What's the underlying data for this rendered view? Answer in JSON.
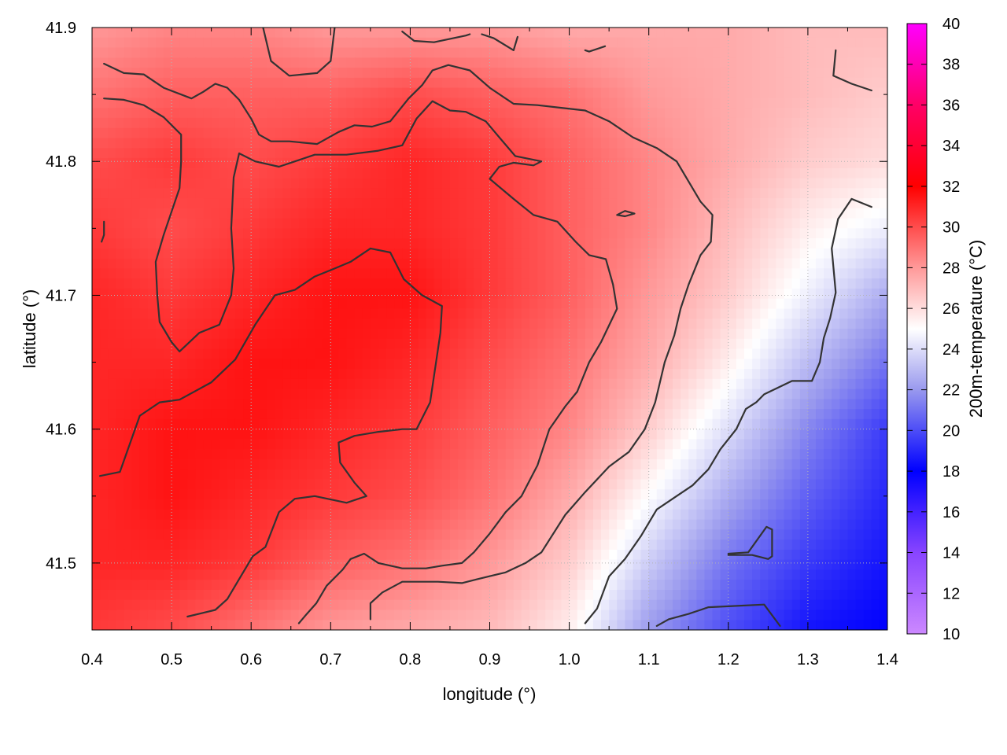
{
  "chart_data": {
    "type": "heatmap",
    "title": "",
    "xlabel": "longitude (°)",
    "ylabel": "latitude (°)",
    "colorbar_label": "200m-temperature (°C)",
    "xlim": [
      0.4,
      1.4
    ],
    "ylim": [
      41.45,
      41.9
    ],
    "x_ticks": [
      "0.4",
      "0.5",
      "0.6",
      "0.7",
      "0.8",
      "0.9",
      "1.0",
      "1.1",
      "1.2",
      "1.3",
      "1.4"
    ],
    "y_ticks": [
      "41.5",
      "41.6",
      "41.7",
      "41.8",
      "41.9"
    ],
    "colorbar_range": [
      10,
      40
    ],
    "colorbar_ticks": [
      "10",
      "12",
      "14",
      "16",
      "18",
      "20",
      "22",
      "24",
      "26",
      "28",
      "30",
      "32",
      "34",
      "36",
      "38",
      "40"
    ],
    "colorscale": [
      {
        "value": 10,
        "color": "#cc88ff"
      },
      {
        "value": 14,
        "color": "#8844ff"
      },
      {
        "value": 18,
        "color": "#0000ff"
      },
      {
        "value": 22,
        "color": "#9999ee"
      },
      {
        "value": 25,
        "color": "#ffffff"
      },
      {
        "value": 28,
        "color": "#ff9999"
      },
      {
        "value": 32,
        "color": "#ff0000"
      },
      {
        "value": 36,
        "color": "#ff0066"
      },
      {
        "value": 40,
        "color": "#ff00ff"
      }
    ],
    "grid": true,
    "field_x": [
      0.4,
      0.5,
      0.6,
      0.7,
      0.8,
      0.9,
      1.0,
      1.1,
      1.2,
      1.3,
      1.4
    ],
    "field_y": [
      41.9,
      41.85,
      41.8,
      41.75,
      41.7,
      41.65,
      41.6,
      41.55,
      41.5,
      41.45
    ],
    "field_values": [
      [
        28.0,
        28.5,
        28.5,
        28.0,
        28.0,
        28.0,
        27.5,
        27.5,
        27.5,
        27.0,
        27.0
      ],
      [
        29.0,
        29.5,
        29.5,
        29.5,
        30.0,
        29.5,
        29.0,
        28.0,
        27.5,
        27.0,
        26.5
      ],
      [
        30.0,
        30.5,
        30.0,
        30.5,
        31.0,
        30.5,
        29.5,
        28.5,
        27.5,
        26.5,
        26.0
      ],
      [
        30.5,
        30.0,
        30.5,
        31.0,
        31.0,
        30.5,
        29.5,
        28.5,
        27.0,
        25.5,
        24.5
      ],
      [
        31.0,
        30.5,
        31.0,
        31.5,
        31.5,
        30.5,
        29.5,
        28.0,
        26.5,
        24.5,
        22.5
      ],
      [
        31.0,
        31.0,
        31.5,
        31.5,
        31.0,
        30.0,
        29.0,
        27.5,
        25.5,
        23.0,
        21.0
      ],
      [
        31.0,
        31.5,
        31.5,
        31.0,
        30.5,
        29.5,
        28.5,
        26.5,
        24.0,
        21.5,
        19.5
      ],
      [
        31.0,
        31.5,
        31.0,
        30.5,
        30.0,
        29.0,
        27.5,
        25.0,
        22.5,
        20.5,
        19.0
      ],
      [
        31.0,
        31.0,
        30.5,
        29.5,
        29.0,
        28.0,
        26.5,
        23.5,
        21.0,
        19.5,
        18.5
      ],
      [
        30.5,
        30.0,
        29.0,
        28.0,
        27.5,
        27.0,
        25.5,
        22.0,
        20.0,
        18.5,
        18.0
      ]
    ],
    "contours": [
      [
        [
          0.41,
          41.565
        ],
        [
          0.435,
          41.568
        ],
        [
          0.46,
          41.61
        ],
        [
          0.485,
          41.62
        ],
        [
          0.51,
          41.622
        ],
        [
          0.55,
          41.635
        ],
        [
          0.58,
          41.652
        ],
        [
          0.605,
          41.678
        ],
        [
          0.63,
          41.7
        ],
        [
          0.655,
          41.704
        ],
        [
          0.68,
          41.714
        ],
        [
          0.705,
          41.72
        ],
        [
          0.725,
          41.725
        ],
        [
          0.75,
          41.735
        ],
        [
          0.775,
          41.732
        ],
        [
          0.792,
          41.712
        ],
        [
          0.815,
          41.7
        ],
        [
          0.84,
          41.692
        ],
        [
          0.838,
          41.672
        ],
        [
          0.825,
          41.62
        ],
        [
          0.808,
          41.6
        ],
        [
          0.79,
          41.6
        ],
        [
          0.76,
          41.598
        ],
        [
          0.73,
          41.595
        ],
        [
          0.71,
          41.59
        ],
        [
          0.712,
          41.575
        ],
        [
          0.73,
          41.56
        ],
        [
          0.745,
          41.55
        ],
        [
          0.72,
          41.545
        ],
        [
          0.68,
          41.55
        ],
        [
          0.655,
          41.548
        ],
        [
          0.635,
          41.538
        ],
        [
          0.618,
          41.512
        ],
        [
          0.602,
          41.505
        ],
        [
          0.585,
          41.488
        ],
        [
          0.57,
          41.473
        ],
        [
          0.555,
          41.465
        ],
        [
          0.52,
          41.46
        ]
      ],
      [
        [
          0.415,
          41.755
        ],
        [
          0.415,
          41.745
        ],
        [
          0.412,
          41.74
        ]
      ],
      [
        [
          0.415,
          41.847
        ],
        [
          0.44,
          41.846
        ],
        [
          0.465,
          41.842
        ],
        [
          0.49,
          41.833
        ],
        [
          0.512,
          41.82
        ],
        [
          0.512,
          41.8
        ],
        [
          0.51,
          41.78
        ],
        [
          0.49,
          41.745
        ],
        [
          0.48,
          41.725
        ],
        [
          0.482,
          41.7
        ],
        [
          0.485,
          41.68
        ],
        [
          0.5,
          41.665
        ],
        [
          0.51,
          41.658
        ],
        [
          0.535,
          41.672
        ],
        [
          0.56,
          41.678
        ],
        [
          0.575,
          41.7
        ],
        [
          0.578,
          41.72
        ],
        [
          0.575,
          41.75
        ],
        [
          0.578,
          41.788
        ],
        [
          0.585,
          41.806
        ],
        [
          0.605,
          41.8
        ],
        [
          0.635,
          41.796
        ],
        [
          0.68,
          41.805
        ],
        [
          0.72,
          41.805
        ],
        [
          0.76,
          41.808
        ],
        [
          0.79,
          41.812
        ],
        [
          0.808,
          41.832
        ],
        [
          0.828,
          41.845
        ],
        [
          0.85,
          41.838
        ],
        [
          0.87,
          41.837
        ],
        [
          0.895,
          41.83
        ],
        [
          0.912,
          41.818
        ],
        [
          0.932,
          41.804
        ],
        [
          0.965,
          41.8
        ],
        [
          0.955,
          41.797
        ],
        [
          0.93,
          41.799
        ],
        [
          0.912,
          41.796
        ],
        [
          0.9,
          41.787
        ],
        [
          0.93,
          41.772
        ],
        [
          0.955,
          41.76
        ],
        [
          0.985,
          41.755
        ],
        [
          1.008,
          41.74
        ],
        [
          1.025,
          41.73
        ],
        [
          1.046,
          41.727
        ],
        [
          1.055,
          41.708
        ],
        [
          1.06,
          41.69
        ],
        [
          1.04,
          41.665
        ],
        [
          1.025,
          41.65
        ],
        [
          1.01,
          41.628
        ],
        [
          0.995,
          41.617
        ],
        [
          0.975,
          41.6
        ],
        [
          0.96,
          41.573
        ],
        [
          0.94,
          41.55
        ],
        [
          0.92,
          41.538
        ],
        [
          0.9,
          41.522
        ],
        [
          0.88,
          41.508
        ],
        [
          0.865,
          41.5
        ],
        [
          0.84,
          41.498
        ],
        [
          0.82,
          41.496
        ],
        [
          0.79,
          41.496
        ],
        [
          0.76,
          41.5
        ],
        [
          0.742,
          41.507
        ],
        [
          0.725,
          41.503
        ],
        [
          0.715,
          41.495
        ],
        [
          0.695,
          41.483
        ],
        [
          0.682,
          41.47
        ],
        [
          0.67,
          41.462
        ],
        [
          0.66,
          41.455
        ]
      ],
      [
        [
          0.415,
          41.873
        ],
        [
          0.44,
          41.866
        ],
        [
          0.465,
          41.865
        ],
        [
          0.49,
          41.855
        ],
        [
          0.525,
          41.847
        ],
        [
          0.54,
          41.852
        ],
        [
          0.555,
          41.858
        ],
        [
          0.57,
          41.855
        ],
        [
          0.585,
          41.846
        ],
        [
          0.6,
          41.832
        ],
        [
          0.61,
          41.82
        ],
        [
          0.625,
          41.815
        ],
        [
          0.648,
          41.815
        ],
        [
          0.683,
          41.813
        ],
        [
          0.71,
          41.822
        ],
        [
          0.73,
          41.827
        ],
        [
          0.752,
          41.826
        ],
        [
          0.775,
          41.83
        ],
        [
          0.798,
          41.847
        ],
        [
          0.815,
          41.857
        ],
        [
          0.828,
          41.868
        ],
        [
          0.848,
          41.872
        ],
        [
          0.875,
          41.868
        ],
        [
          0.9,
          41.855
        ],
        [
          0.93,
          41.843
        ],
        [
          0.96,
          41.842
        ],
        [
          0.99,
          41.84
        ],
        [
          1.02,
          41.838
        ],
        [
          1.05,
          41.83
        ],
        [
          1.08,
          41.818
        ],
        [
          1.11,
          41.81
        ],
        [
          1.135,
          41.8
        ],
        [
          1.15,
          41.785
        ],
        [
          1.165,
          41.77
        ],
        [
          1.18,
          41.76
        ],
        [
          1.178,
          41.74
        ],
        [
          1.165,
          41.73
        ],
        [
          1.15,
          41.708
        ],
        [
          1.14,
          41.69
        ],
        [
          1.132,
          41.67
        ],
        [
          1.12,
          41.65
        ],
        [
          1.108,
          41.62
        ],
        [
          1.095,
          41.6
        ],
        [
          1.075,
          41.583
        ],
        [
          1.05,
          41.572
        ],
        [
          1.02,
          41.553
        ],
        [
          0.995,
          41.536
        ],
        [
          0.965,
          41.508
        ],
        [
          0.945,
          41.5
        ],
        [
          0.92,
          41.493
        ],
        [
          0.885,
          41.488
        ],
        [
          0.865,
          41.485
        ],
        [
          0.835,
          41.486
        ],
        [
          0.79,
          41.486
        ],
        [
          0.765,
          41.478
        ],
        [
          0.75,
          41.47
        ],
        [
          0.75,
          41.458
        ]
      ],
      [
        [
          0.615,
          41.9
        ],
        [
          0.625,
          41.875
        ],
        [
          0.648,
          41.864
        ],
        [
          0.683,
          41.866
        ],
        [
          0.7,
          41.875
        ],
        [
          0.705,
          41.9
        ]
      ],
      [
        [
          0.79,
          41.897
        ],
        [
          0.805,
          41.89
        ],
        [
          0.83,
          41.889
        ],
        [
          0.87,
          41.894
        ],
        [
          0.875,
          41.895
        ]
      ],
      [
        [
          0.89,
          41.895
        ],
        [
          0.905,
          41.892
        ],
        [
          0.93,
          41.883
        ],
        [
          0.935,
          41.893
        ]
      ],
      [
        [
          1.02,
          41.883
        ],
        [
          1.025,
          41.882
        ],
        [
          1.045,
          41.886
        ]
      ],
      [
        [
          1.06,
          41.76
        ],
        [
          1.07,
          41.763
        ],
        [
          1.082,
          41.761
        ],
        [
          1.07,
          41.759
        ],
        [
          1.06,
          41.76
        ]
      ],
      [
        [
          1.02,
          41.455
        ],
        [
          1.035,
          41.466
        ],
        [
          1.05,
          41.49
        ],
        [
          1.07,
          41.503
        ],
        [
          1.09,
          41.52
        ],
        [
          1.11,
          41.54
        ],
        [
          1.13,
          41.548
        ],
        [
          1.155,
          41.558
        ],
        [
          1.175,
          41.57
        ],
        [
          1.19,
          41.585
        ],
        [
          1.21,
          41.6
        ],
        [
          1.222,
          41.615
        ],
        [
          1.235,
          41.62
        ],
        [
          1.245,
          41.626
        ],
        [
          1.28,
          41.636
        ],
        [
          1.305,
          41.636
        ],
        [
          1.315,
          41.65
        ],
        [
          1.32,
          41.668
        ],
        [
          1.328,
          41.683
        ],
        [
          1.335,
          41.702
        ],
        [
          1.33,
          41.735
        ],
        [
          1.338,
          41.757
        ],
        [
          1.355,
          41.772
        ],
        [
          1.38,
          41.766
        ]
      ],
      [
        [
          1.2,
          41.507
        ],
        [
          1.225,
          41.508
        ],
        [
          1.248,
          41.527
        ],
        [
          1.255,
          41.525
        ],
        [
          1.255,
          41.505
        ],
        [
          1.25,
          41.503
        ],
        [
          1.23,
          41.506
        ],
        [
          1.2,
          41.506
        ]
      ],
      [
        [
          1.11,
          41.453
        ],
        [
          1.125,
          41.458
        ],
        [
          1.15,
          41.462
        ],
        [
          1.175,
          41.467
        ],
        [
          1.245,
          41.469
        ],
        [
          1.265,
          41.453
        ]
      ],
      [
        [
          1.335,
          41.883
        ],
        [
          1.332,
          41.864
        ],
        [
          1.355,
          41.858
        ],
        [
          1.38,
          41.853
        ]
      ]
    ]
  }
}
